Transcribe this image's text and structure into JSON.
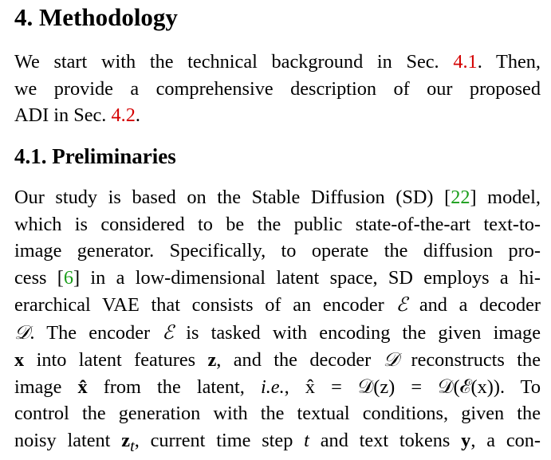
{
  "section": {
    "number": "4.",
    "title": "Methodology"
  },
  "intro": {
    "l1_a": "We start with the technical background in Sec. ",
    "l1_ref": "4.1",
    "l1_b": ". Then,",
    "l2": "we provide a comprehensive description of our proposed",
    "l3_a": "ADI in Sec. ",
    "l3_ref": "4.2",
    "l3_b": "."
  },
  "subsection": {
    "number": "4.1.",
    "title": "Preliminaries"
  },
  "body": {
    "l1_a": "Our study is based on the Stable Diffusion (SD) ",
    "l1_cite_open": "[",
    "l1_cite": "22",
    "l1_cite_close": "]",
    "l1_b": " model,",
    "l2": "which is considered to be the public state-of-the-art text-to-",
    "l3": "image generator. Specifically, to operate the diffusion pro-",
    "l4_a": "cess ",
    "l4_cite_open": "[",
    "l4_cite": "6",
    "l4_cite_close": "]",
    "l4_b": " in a low-dimensional latent space, SD employs a hi-",
    "l5_a": "erarchical VAE that consists of an encoder ",
    "l5_e": "ℰ",
    "l5_b": " and a decoder",
    "l6_d": "𝒟",
    "l6_a": ". The encoder ",
    "l6_e": "ℰ",
    "l6_b": " is tasked with encoding the given image",
    "l7_x": "x",
    "l7_a": " into latent features ",
    "l7_z": "z",
    "l7_b": ", and the decoder ",
    "l7_d": "𝒟",
    "l7_c": " reconstructs the",
    "l8_a": "image ",
    "l8_xhat": "x̂",
    "l8_b": " from the latent, ",
    "l8_ie": "i.e.",
    "l8_c": ", ",
    "l8_eq": "x̂ = 𝒟(z) = 𝒟(ℰ(x))",
    "l8_d": ". To",
    "l9": "control the generation with the textual conditions, given the",
    "l10_a": "noisy latent ",
    "l10_zt": "z",
    "l10_t": "t",
    "l10_b": ", current time step ",
    "l10_step": "t",
    "l10_c": " and text tokens ",
    "l10_y": "y",
    "l10_d": ", a con-"
  }
}
